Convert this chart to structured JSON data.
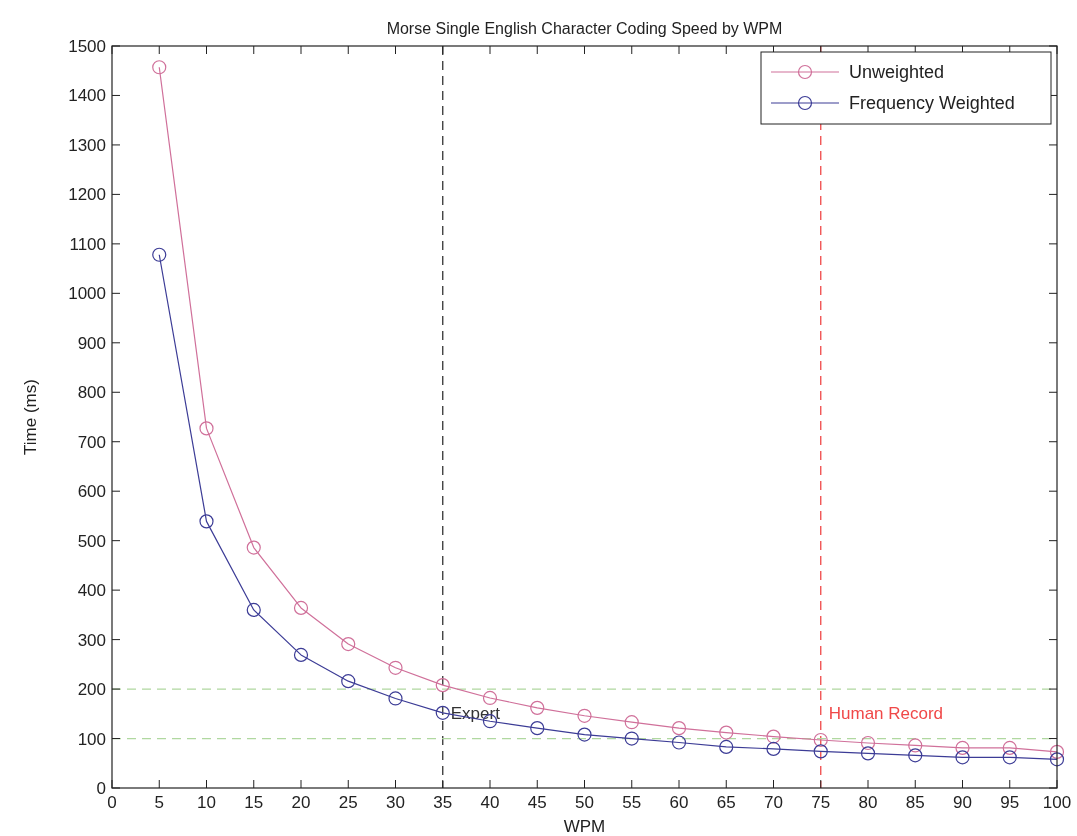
{
  "chart_data": {
    "type": "line",
    "title": "Morse Single English Character Coding Speed by WPM",
    "xlabel": "WPM",
    "ylabel": "Time (ms)",
    "x": [
      5,
      10,
      15,
      20,
      25,
      30,
      35,
      40,
      45,
      50,
      55,
      60,
      65,
      70,
      75,
      80,
      85,
      90,
      95,
      100
    ],
    "series": [
      {
        "name": "Unweighted",
        "color": "#d0709a",
        "values": [
          1457,
          727,
          486,
          364,
          291,
          243,
          208,
          182,
          162,
          146,
          133,
          121,
          112,
          104,
          97,
          91,
          86,
          81,
          81,
          73
        ]
      },
      {
        "name": "Frequency Weighted",
        "color": "#3c3c96",
        "values": [
          1078,
          539,
          360,
          269,
          216,
          181,
          152,
          135,
          121,
          108,
          100,
          92,
          83,
          79,
          74,
          70,
          66,
          62,
          62,
          58
        ]
      }
    ],
    "xlim": [
      0,
      100
    ],
    "xticks": [
      0,
      5,
      10,
      15,
      20,
      25,
      30,
      35,
      40,
      45,
      50,
      55,
      60,
      65,
      70,
      75,
      80,
      85,
      90,
      95,
      100
    ],
    "ylim": [
      0,
      1500
    ],
    "yticks": [
      0,
      100,
      200,
      300,
      400,
      500,
      600,
      700,
      800,
      900,
      1000,
      1100,
      1200,
      1300,
      1400,
      1500
    ],
    "ref_lines": [
      {
        "axis": "x",
        "value": 35,
        "label": "Expert",
        "color": "#333333",
        "line_style": "dashed"
      },
      {
        "axis": "x",
        "value": 75,
        "label": "Human Record",
        "color": "#f04848",
        "line_style": "dashed"
      },
      {
        "axis": "y",
        "value": 200,
        "color": "#b0d8a0",
        "line_style": "dashed"
      },
      {
        "axis": "y",
        "value": 100,
        "color": "#b0d8a0",
        "line_style": "dashed"
      }
    ],
    "grid": false,
    "legend": "top right",
    "marker": "circle",
    "line_style": "solid"
  }
}
